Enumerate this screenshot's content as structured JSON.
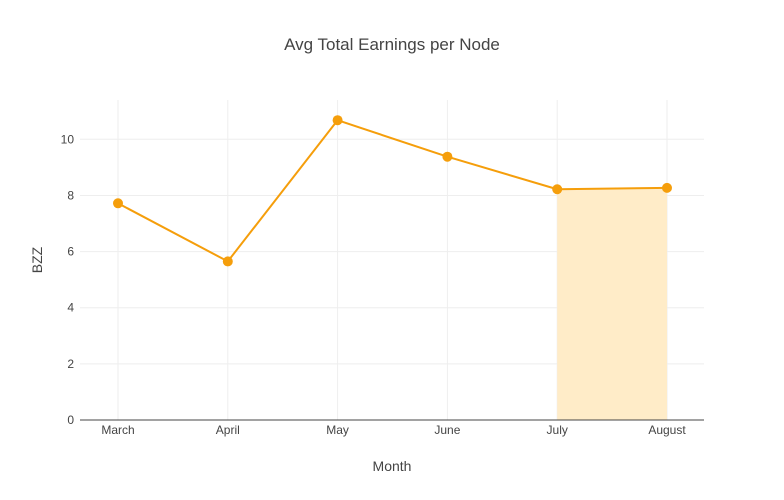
{
  "chart_data": {
    "type": "line",
    "title": "Avg Total Earnings per Node",
    "xlabel": "Month",
    "ylabel": "BZZ",
    "categories": [
      "March",
      "April",
      "May",
      "June",
      "July",
      "August"
    ],
    "series": [
      {
        "values": [
          7.72,
          5.65,
          10.68,
          9.38,
          8.22,
          8.27
        ]
      }
    ],
    "ylim": [
      0,
      11.4
    ],
    "yticks": [
      0,
      2,
      4,
      6,
      8,
      10
    ],
    "grid": true,
    "highlight": {
      "from": "July",
      "to": "August",
      "color": "#ffecc8"
    },
    "colors": {
      "line": "#f59e0b",
      "marker": "#f59e0b",
      "grid": "#eeeeee",
      "axis": "#444444"
    }
  }
}
